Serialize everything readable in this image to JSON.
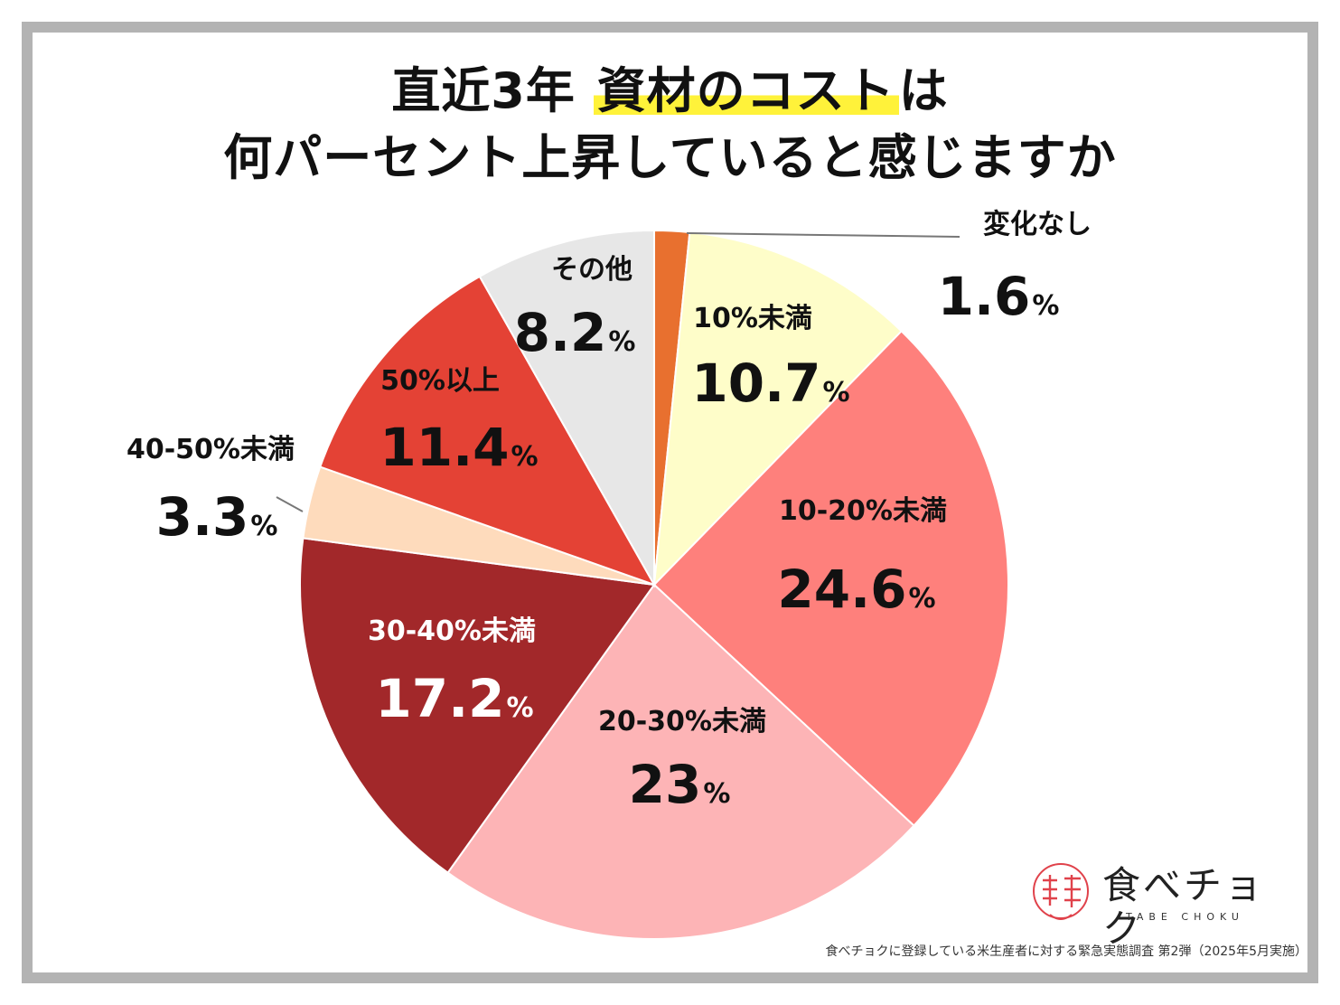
{
  "title": {
    "line1_a": "直近3年 ",
    "line1_highlight": "資材のコスト",
    "line1_b": "は",
    "line2": "何パーセント上昇していると感じますか"
  },
  "chart_data": {
    "type": "pie",
    "unit": "%",
    "start_angle_deg": 0,
    "direction": "clockwise",
    "slices": [
      {
        "label": "変化なし",
        "value": 1.6,
        "value_text": "1.6",
        "color": "#e8702f",
        "label_color": "#111111"
      },
      {
        "label": "10%未満",
        "value": 10.7,
        "value_text": "10.7",
        "color": "#fefdc9",
        "label_color": "#111111"
      },
      {
        "label": "10-20%未満",
        "value": 24.6,
        "value_text": "24.6",
        "color": "#fe807c",
        "label_color": "#111111"
      },
      {
        "label": "20-30%未満",
        "value": 23,
        "value_text": "23",
        "color": "#fdb4b6",
        "label_color": "#111111"
      },
      {
        "label": "30-40%未満",
        "value": 17.2,
        "value_text": "17.2",
        "color": "#a2282a",
        "label_color": "#ffffff"
      },
      {
        "label": "40-50%未満",
        "value": 3.3,
        "value_text": "3.3",
        "color": "#fedbbc",
        "label_color": "#111111"
      },
      {
        "label": "50%以上",
        "value": 11.4,
        "value_text": "11.4",
        "color": "#e44235",
        "label_color": "#111111"
      },
      {
        "label": "その他",
        "value": 8.2,
        "value_text": "8.2",
        "color": "#e7e7e7",
        "label_color": "#111111"
      }
    ]
  },
  "logo": {
    "name": "食べチョク",
    "sub": "TABE CHOKU",
    "mark_color": "#e0424b"
  },
  "footnote": "食べチョクに登録している米生産者に対する緊急実態調査 第2弾（2025年5月実施）"
}
